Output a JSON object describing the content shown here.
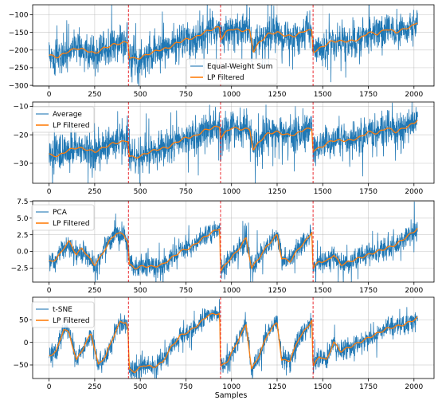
{
  "chart_data": [
    {
      "type": "line",
      "xlim": [
        -90,
        2110
      ],
      "ylim": [
        -302,
        -72
      ],
      "xticks": [
        0,
        250,
        500,
        750,
        1000,
        1250,
        1500,
        1750,
        2000
      ],
      "yticks": [
        -300,
        -250,
        -200,
        -150,
        -100
      ],
      "grid": true,
      "legend": {
        "position": "center-right",
        "entries": [
          "Equal-Weight Sum",
          "LP Filtered"
        ]
      },
      "xlabel": "",
      "ylabel": "",
      "series": [
        {
          "name": "Equal-Weight Sum",
          "color": "#1f77b4",
          "kind": "raw",
          "noise": 30,
          "spike_scale": 1.6,
          "x": [
            0,
            50,
            100,
            150,
            200,
            250,
            300,
            350,
            400,
            432,
            440,
            470,
            500,
            550,
            600,
            650,
            700,
            750,
            800,
            850,
            900,
            935,
            940,
            970,
            1000,
            1050,
            1100,
            1120,
            1150,
            1200,
            1250,
            1300,
            1350,
            1400,
            1440,
            1447,
            1470,
            1500,
            1550,
            1600,
            1650,
            1700,
            1750,
            1800,
            1850,
            1900,
            1950,
            2000,
            2020
          ],
          "y": [
            -215,
            -220,
            -205,
            -195,
            -200,
            -210,
            -195,
            -185,
            -180,
            -178,
            -220,
            -225,
            -222,
            -210,
            -200,
            -195,
            -180,
            -170,
            -165,
            -150,
            -140,
            -135,
            -170,
            -150,
            -140,
            -145,
            -145,
            -205,
            -180,
            -155,
            -150,
            -160,
            -160,
            -145,
            -145,
            -205,
            -200,
            -190,
            -175,
            -175,
            -175,
            -170,
            -150,
            -155,
            -140,
            -150,
            -140,
            -130,
            -120
          ]
        },
        {
          "name": "LP Filtered",
          "color": "#ff7f0e",
          "kind": "smooth",
          "x": [
            0,
            50,
            100,
            150,
            200,
            250,
            300,
            350,
            400,
            432,
            440,
            470,
            500,
            550,
            600,
            650,
            700,
            750,
            800,
            850,
            900,
            935,
            940,
            970,
            1000,
            1050,
            1100,
            1120,
            1150,
            1200,
            1250,
            1300,
            1350,
            1400,
            1440,
            1447,
            1470,
            1500,
            1550,
            1600,
            1650,
            1700,
            1750,
            1800,
            1850,
            1900,
            1950,
            2000,
            2020
          ],
          "y": [
            -215,
            -220,
            -205,
            -195,
            -200,
            -210,
            -195,
            -185,
            -180,
            -178,
            -220,
            -225,
            -222,
            -210,
            -200,
            -195,
            -180,
            -170,
            -165,
            -150,
            -140,
            -135,
            -170,
            -150,
            -140,
            -145,
            -145,
            -205,
            -180,
            -155,
            -150,
            -160,
            -160,
            -145,
            -145,
            -205,
            -200,
            -190,
            -175,
            -175,
            -175,
            -170,
            -150,
            -155,
            -140,
            -150,
            -140,
            -130,
            -120
          ]
        }
      ]
    },
    {
      "type": "line",
      "xlim": [
        -90,
        2110
      ],
      "ylim": [
        -37,
        -8.5
      ],
      "xticks": [
        0,
        250,
        500,
        750,
        1000,
        1250,
        1500,
        1750,
        2000
      ],
      "yticks": [
        -30,
        -20,
        -10
      ],
      "grid": true,
      "legend": {
        "position": "upper-left",
        "entries": [
          "Average",
          "LP Filtered"
        ]
      },
      "xlabel": "",
      "ylabel": "",
      "series": [
        {
          "name": "Average",
          "color": "#1f77b4",
          "kind": "raw",
          "noise": 3.8,
          "spike_scale": 1.6,
          "x": [
            0,
            50,
            100,
            150,
            200,
            250,
            300,
            350,
            400,
            432,
            440,
            470,
            500,
            550,
            600,
            650,
            700,
            750,
            800,
            850,
            900,
            935,
            940,
            970,
            1000,
            1050,
            1100,
            1120,
            1150,
            1200,
            1250,
            1300,
            1350,
            1400,
            1440,
            1447,
            1470,
            1500,
            1550,
            1600,
            1650,
            1700,
            1750,
            1800,
            1850,
            1900,
            1950,
            2000,
            2020
          ],
          "y": [
            -27,
            -27.5,
            -25.5,
            -24.5,
            -25,
            -26,
            -24.5,
            -23,
            -22.5,
            -22,
            -27.5,
            -28,
            -27.5,
            -26,
            -25,
            -24.5,
            -22.5,
            -21,
            -20.5,
            -18.5,
            -17.5,
            -17,
            -21,
            -19,
            -17.5,
            -18,
            -18,
            -25.5,
            -22.5,
            -19.5,
            -19,
            -20,
            -20,
            -18,
            -18,
            -25.5,
            -25,
            -24,
            -22,
            -22,
            -22,
            -21,
            -19,
            -19.5,
            -17.5,
            -19,
            -17.5,
            -16,
            -14.5
          ]
        },
        {
          "name": "LP Filtered",
          "color": "#ff7f0e",
          "kind": "smooth",
          "x": [
            0,
            50,
            100,
            150,
            200,
            250,
            300,
            350,
            400,
            432,
            440,
            470,
            500,
            550,
            600,
            650,
            700,
            750,
            800,
            850,
            900,
            935,
            940,
            970,
            1000,
            1050,
            1100,
            1120,
            1150,
            1200,
            1250,
            1300,
            1350,
            1400,
            1440,
            1447,
            1470,
            1500,
            1550,
            1600,
            1650,
            1700,
            1750,
            1800,
            1850,
            1900,
            1950,
            2000,
            2020
          ],
          "y": [
            -27,
            -27.5,
            -25.5,
            -24.5,
            -25,
            -26,
            -24.5,
            -23,
            -22.5,
            -22,
            -27.5,
            -28,
            -27.5,
            -26,
            -25,
            -24.5,
            -22.5,
            -21,
            -20.5,
            -18.5,
            -17.5,
            -17,
            -21,
            -19,
            -17.5,
            -18,
            -18,
            -25.5,
            -22.5,
            -19.5,
            -19,
            -20,
            -20,
            -18,
            -18,
            -25.5,
            -25,
            -24,
            -22,
            -22,
            -22,
            -21,
            -19,
            -19.5,
            -17.5,
            -19,
            -17.5,
            -16,
            -14.5
          ]
        }
      ]
    },
    {
      "type": "line",
      "xlim": [
        -90,
        2110
      ],
      "ylim": [
        -4.6,
        7.6
      ],
      "xticks": [
        0,
        250,
        500,
        750,
        1000,
        1250,
        1500,
        1750,
        2000
      ],
      "yticks": [
        -2.5,
        0.0,
        2.5,
        5.0,
        7.5
      ],
      "ytick_labels": [
        "−2.5",
        "0.0",
        "2.5",
        "5.0",
        "7.5"
      ],
      "grid": true,
      "legend": {
        "position": "upper-left",
        "entries": [
          "PCA",
          "LP Filtered"
        ]
      },
      "xlabel": "",
      "ylabel": "",
      "series": [
        {
          "name": "PCA",
          "color": "#1f77b4",
          "kind": "raw",
          "noise": 1.0,
          "spike_scale": 1.7,
          "x": [
            0,
            40,
            80,
            110,
            150,
            180,
            220,
            250,
            290,
            330,
            370,
            410,
            432,
            440,
            470,
            520,
            570,
            620,
            670,
            720,
            770,
            820,
            870,
            935,
            940,
            980,
            1030,
            1080,
            1110,
            1150,
            1200,
            1250,
            1275,
            1320,
            1370,
            1420,
            1440,
            1447,
            1480,
            1520,
            1560,
            1600,
            1650,
            1700,
            1750,
            1800,
            1850,
            1900,
            1950,
            2000,
            2020
          ],
          "y": [
            -1.5,
            -1.2,
            0.5,
            1.5,
            -0.5,
            0.5,
            -1.0,
            -2.0,
            -0.5,
            1.5,
            2.8,
            2.5,
            1.5,
            -2.0,
            -2.5,
            -2.2,
            -2.3,
            -2.0,
            -1.0,
            0.0,
            0.5,
            1.5,
            2.5,
            3.5,
            -3.0,
            -1.5,
            0.0,
            2.0,
            -2.5,
            -1.0,
            1.0,
            2.5,
            -1.0,
            -1.5,
            0.5,
            2.0,
            3.0,
            -2.5,
            -1.5,
            -1.5,
            -0.5,
            -2.0,
            -1.5,
            -1.0,
            -0.5,
            0.0,
            0.5,
            1.0,
            2.0,
            3.0,
            3.5
          ]
        },
        {
          "name": "LP Filtered",
          "color": "#ff7f0e",
          "kind": "smooth",
          "x": [
            0,
            40,
            80,
            110,
            150,
            180,
            220,
            250,
            290,
            330,
            370,
            410,
            432,
            440,
            470,
            520,
            570,
            620,
            670,
            720,
            770,
            820,
            870,
            935,
            940,
            980,
            1030,
            1080,
            1110,
            1150,
            1200,
            1250,
            1275,
            1320,
            1370,
            1420,
            1440,
            1447,
            1480,
            1520,
            1560,
            1600,
            1650,
            1700,
            1750,
            1800,
            1850,
            1900,
            1950,
            2000,
            2020
          ],
          "y": [
            -1.5,
            -1.2,
            0.5,
            1.5,
            -0.5,
            0.5,
            -1.0,
            -2.0,
            -0.5,
            1.5,
            2.8,
            2.5,
            1.5,
            -2.0,
            -2.5,
            -2.2,
            -2.3,
            -2.0,
            -1.0,
            0.0,
            0.5,
            1.5,
            2.5,
            3.5,
            -3.0,
            -1.5,
            0.0,
            2.0,
            -2.5,
            -1.0,
            1.0,
            2.5,
            -1.0,
            -1.5,
            0.5,
            2.0,
            3.0,
            -2.5,
            -1.5,
            -1.5,
            -0.5,
            -2.0,
            -1.5,
            -1.0,
            -0.5,
            0.0,
            0.5,
            1.0,
            2.0,
            3.0,
            3.5
          ]
        }
      ]
    },
    {
      "type": "line",
      "xlim": [
        -90,
        2110
      ],
      "ylim": [
        -80,
        100
      ],
      "xticks": [
        0,
        250,
        500,
        750,
        1000,
        1250,
        1500,
        1750,
        2000
      ],
      "yticks": [
        -50,
        0,
        50
      ],
      "grid": true,
      "legend": {
        "position": "upper-left",
        "entries": [
          "t-SNE",
          "LP Filtered"
        ]
      },
      "xlabel": "Samples",
      "ylabel": "",
      "series": [
        {
          "name": "t-SNE",
          "color": "#1f77b4",
          "kind": "raw",
          "noise": 13,
          "spike_scale": 1.6,
          "x": [
            0,
            40,
            80,
            110,
            150,
            190,
            230,
            270,
            310,
            350,
            390,
            420,
            432,
            440,
            470,
            520,
            570,
            620,
            670,
            720,
            770,
            820,
            870,
            935,
            940,
            980,
            1030,
            1080,
            1110,
            1150,
            1200,
            1250,
            1275,
            1320,
            1370,
            1420,
            1440,
            1447,
            1480,
            1520,
            1560,
            1600,
            1650,
            1700,
            1750,
            1800,
            1850,
            1900,
            1950,
            2000,
            2020
          ],
          "y": [
            -30,
            -20,
            30,
            20,
            -40,
            -10,
            20,
            -50,
            -30,
            10,
            45,
            45,
            30,
            -60,
            -65,
            -50,
            -55,
            -45,
            -10,
            15,
            25,
            40,
            60,
            65,
            -55,
            -40,
            0,
            40,
            -60,
            -30,
            20,
            45,
            -40,
            -40,
            10,
            35,
            50,
            -55,
            -30,
            -40,
            0,
            -20,
            -10,
            0,
            10,
            20,
            30,
            35,
            40,
            50,
            55
          ]
        },
        {
          "name": "LP Filtered",
          "color": "#ff7f0e",
          "kind": "smooth",
          "x": [
            0,
            40,
            80,
            110,
            150,
            190,
            230,
            270,
            310,
            350,
            390,
            420,
            432,
            440,
            470,
            520,
            570,
            620,
            670,
            720,
            770,
            820,
            870,
            935,
            940,
            980,
            1030,
            1080,
            1110,
            1150,
            1200,
            1250,
            1275,
            1320,
            1370,
            1420,
            1440,
            1447,
            1480,
            1520,
            1560,
            1600,
            1650,
            1700,
            1750,
            1800,
            1850,
            1900,
            1950,
            2000,
            2020
          ],
          "y": [
            -30,
            -20,
            30,
            20,
            -40,
            -10,
            20,
            -50,
            -30,
            10,
            45,
            45,
            30,
            -60,
            -65,
            -50,
            -55,
            -45,
            -10,
            15,
            25,
            40,
            60,
            65,
            -55,
            -40,
            0,
            40,
            -60,
            -30,
            20,
            45,
            -40,
            -40,
            10,
            35,
            50,
            -55,
            -30,
            -40,
            0,
            -20,
            -10,
            0,
            10,
            20,
            30,
            35,
            40,
            50,
            55
          ]
        }
      ]
    }
  ],
  "boundaries": {
    "x": [
      435,
      940,
      1447
    ],
    "color": "#e8141b",
    "style": "dashed"
  },
  "colors": {
    "raw": "#1f77b4",
    "filtered": "#ff7f0e",
    "boundary": "#e8141b",
    "grid": "#b0b0b0",
    "axes": "#000000"
  },
  "xtick_labels": [
    "0",
    "250",
    "500",
    "750",
    "1000",
    "1250",
    "1500",
    "1750",
    "2000"
  ],
  "shared_xlabel": "Samples"
}
